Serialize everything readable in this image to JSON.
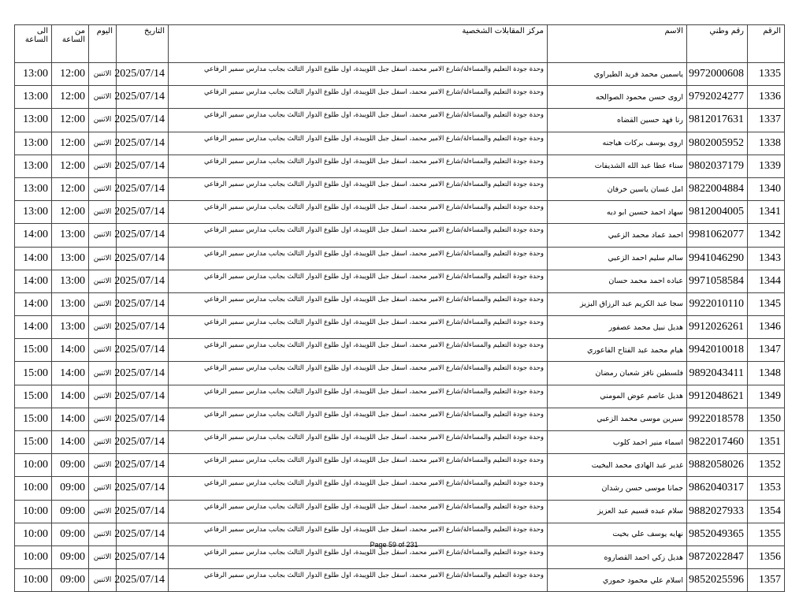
{
  "headers": {
    "no": "الرقم",
    "national_id": "رقم وطني",
    "name": "الاسم",
    "center": "مركز المقابلات الشخصية",
    "date": "التاريخ",
    "day": "اليوم",
    "from": "من الساعة",
    "to": "الى الساعة"
  },
  "address": "وحدة جودة التعليم والمساءلة/شارع الامير محمد، اسفل جبل اللويبدة، اول طلوع الدوار الثالث بجانب مدارس سمير الرفاعي",
  "date": "2025/07/14",
  "day": "الاثنين",
  "rows": [
    {
      "no": "1335",
      "id": "9972000608",
      "name": "ياسمين محمد فريد الطيراوي",
      "from": "12:00",
      "to": "13:00"
    },
    {
      "no": "1336",
      "id": "9792024277",
      "name": "اروى حسن محمود الصوالحه",
      "from": "12:00",
      "to": "13:00"
    },
    {
      "no": "1337",
      "id": "9812017631",
      "name": "رنا فهد حسين القضاه",
      "from": "12:00",
      "to": "13:00"
    },
    {
      "no": "1338",
      "id": "9802005952",
      "name": "اروى يوسف بركات هياجنه",
      "from": "12:00",
      "to": "13:00"
    },
    {
      "no": "1339",
      "id": "9802037179",
      "name": "سناء عطا عبد الله الشديفات",
      "from": "12:00",
      "to": "13:00"
    },
    {
      "no": "1340",
      "id": "9822004884",
      "name": "امل غسان ياسين خرفان",
      "from": "12:00",
      "to": "13:00"
    },
    {
      "no": "1341",
      "id": "9812004005",
      "name": "سهاد احمد حسين ابو ديه",
      "from": "12:00",
      "to": "13:00"
    },
    {
      "no": "1342",
      "id": "9981062077",
      "name": "احمد عماد محمد الزعبي",
      "from": "13:00",
      "to": "14:00"
    },
    {
      "no": "1343",
      "id": "9941046290",
      "name": "سالم سليم احمد الزعبي",
      "from": "13:00",
      "to": "14:00"
    },
    {
      "no": "1344",
      "id": "9971058584",
      "name": "عباده احمد محمد حسان",
      "from": "13:00",
      "to": "14:00"
    },
    {
      "no": "1345",
      "id": "9922010110",
      "name": "سجا عبد الكريم عبد الرزاق البزيز",
      "from": "13:00",
      "to": "14:00"
    },
    {
      "no": "1346",
      "id": "9912026261",
      "name": "هديل نبيل محمد عصفور",
      "from": "13:00",
      "to": "14:00"
    },
    {
      "no": "1347",
      "id": "9942010018",
      "name": "هيام محمد عبد الفتاح الفاعوري",
      "from": "14:00",
      "to": "15:00"
    },
    {
      "no": "1348",
      "id": "9892043411",
      "name": "فلسطين نافز شعبان رمضان",
      "from": "14:00",
      "to": "15:00"
    },
    {
      "no": "1349",
      "id": "9912048621",
      "name": "هديل عاصم عوض المومني",
      "from": "14:00",
      "to": "15:00"
    },
    {
      "no": "1350",
      "id": "9922018578",
      "name": "سيرين موسى محمد الزعبي",
      "from": "14:00",
      "to": "15:00"
    },
    {
      "no": "1351",
      "id": "9822017460",
      "name": "اسماء منير احمد كلوب",
      "from": "14:00",
      "to": "15:00"
    },
    {
      "no": "1352",
      "id": "9882058026",
      "name": "غدير عبد الهادى محمد البخيت",
      "from": "09:00",
      "to": "10:00"
    },
    {
      "no": "1353",
      "id": "9862040317",
      "name": "جمانا موسى حسن رشدان",
      "from": "09:00",
      "to": "10:00"
    },
    {
      "no": "1354",
      "id": "9882027933",
      "name": "سلام عبده قسيم عبد العزيز",
      "from": "09:00",
      "to": "10:00"
    },
    {
      "no": "1355",
      "id": "9852049365",
      "name": "نهايه يوسف علي بخيت",
      "from": "09:00",
      "to": "10:00"
    },
    {
      "no": "1356",
      "id": "9872022847",
      "name": "هديل زكي احمد القصاروه",
      "from": "09:00",
      "to": "10:00"
    },
    {
      "no": "1357",
      "id": "9852025596",
      "name": "اسلام علي محمود حموري",
      "from": "09:00",
      "to": "10:00"
    }
  ],
  "footer": "Page 59 of 231"
}
